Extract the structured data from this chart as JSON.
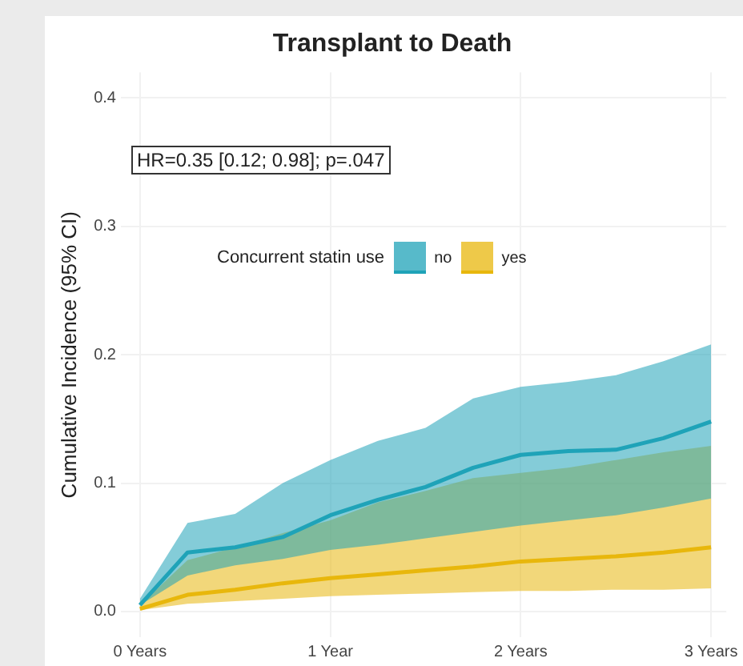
{
  "chart_data": {
    "type": "line",
    "title": "Transplant to Death",
    "ylabel": "Cumulative Incidence (95% CI)",
    "legend_title": "Concurrent statin use",
    "annotations": [
      "HR=0.35 [0.12; 0.98]; p=.047"
    ],
    "x": [
      0,
      0.25,
      0.5,
      0.75,
      1,
      1.25,
      1.5,
      1.75,
      2,
      2.25,
      2.5,
      2.75,
      3
    ],
    "series": [
      {
        "name": "no",
        "color": "#1fa3b8",
        "values": [
          0.005,
          0.046,
          0.05,
          0.058,
          0.075,
          0.087,
          0.097,
          0.112,
          0.122,
          0.125,
          0.126,
          0.135,
          0.148
        ],
        "lower": [
          0.005,
          0.028,
          0.036,
          0.041,
          0.048,
          0.052,
          0.057,
          0.062,
          0.067,
          0.071,
          0.075,
          0.081,
          0.088
        ],
        "upper": [
          0.01,
          0.069,
          0.076,
          0.1,
          0.118,
          0.133,
          0.143,
          0.166,
          0.175,
          0.179,
          0.184,
          0.195,
          0.208
        ]
      },
      {
        "name": "yes",
        "color": "#e8b70c",
        "values": [
          0.002,
          0.013,
          0.017,
          0.022,
          0.026,
          0.029,
          0.032,
          0.035,
          0.039,
          0.041,
          0.043,
          0.046,
          0.05
        ],
        "lower": [
          0.001,
          0.006,
          0.008,
          0.01,
          0.012,
          0.013,
          0.014,
          0.015,
          0.016,
          0.016,
          0.017,
          0.017,
          0.018
        ],
        "upper": [
          0.005,
          0.04,
          0.05,
          0.061,
          0.071,
          0.085,
          0.094,
          0.104,
          0.108,
          0.112,
          0.118,
          0.124,
          0.129
        ]
      }
    ],
    "xlim": [
      -0.1,
      3.08
    ],
    "ylim": [
      -0.02,
      0.42
    ],
    "xticks": [
      {
        "value": 0,
        "label": "0 Years"
      },
      {
        "value": 1,
        "label": "1 Year"
      },
      {
        "value": 2,
        "label": "2 Years"
      },
      {
        "value": 3,
        "label": "3 Years"
      }
    ],
    "yticks": [
      {
        "value": 0,
        "label": "0.0"
      },
      0.1,
      0.2,
      0.3,
      0.4
    ],
    "grid": true,
    "legend": "top",
    "marker": "none",
    "line_style": "solid"
  }
}
